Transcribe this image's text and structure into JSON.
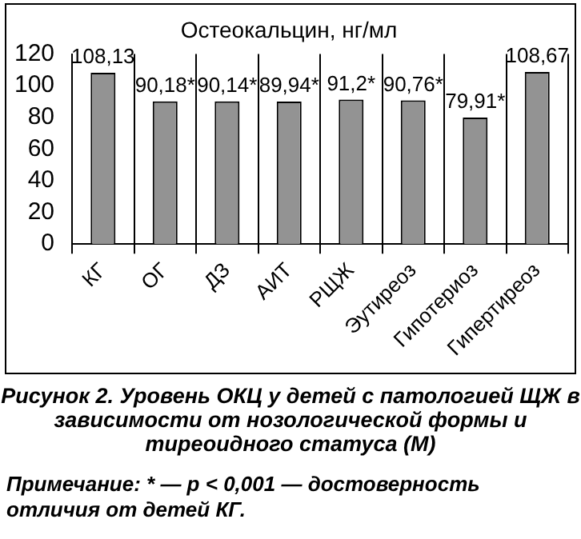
{
  "chart_data": {
    "type": "bar",
    "title": "Остеокальцин, нг/мл",
    "categories": [
      "КГ",
      "ОГ",
      "ДЗ",
      "АИТ",
      "РЩЖ",
      "Эутиреоз",
      "Гипотериоз",
      "Гипертиреоз"
    ],
    "values": [
      108.13,
      90.18,
      90.14,
      89.94,
      91.2,
      90.76,
      79.91,
      108.67
    ],
    "value_labels": [
      "108,13",
      "90,18*",
      "90,14*",
      "89,94*",
      "91,2*",
      "90,76*",
      "79,91*",
      "108,67"
    ],
    "color": "#939393",
    "ylim": [
      0,
      120
    ],
    "yticks": [
      0,
      20,
      40,
      60,
      80,
      100,
      120
    ],
    "grid": "x",
    "legend": false,
    "annotations": [
      "Рисунок 2. Уровень ОКЦ у детей с патологией ЩЖ в зависимости от нозологической формы и тиреоидного статуса (М)",
      "Примечание: * — p < 0,001 — достоверность отличия от детей КГ."
    ]
  }
}
